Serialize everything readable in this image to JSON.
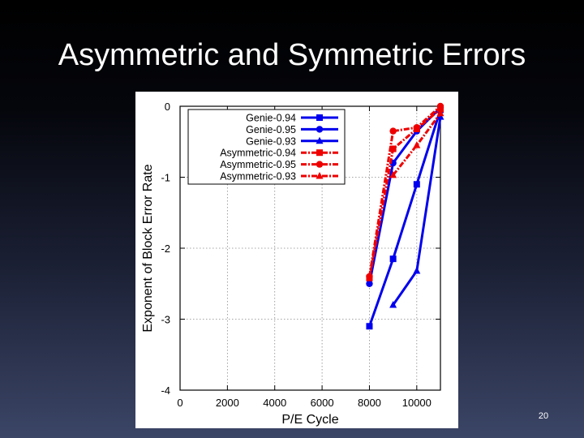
{
  "slide": {
    "title": "Asymmetric and Symmetric Errors",
    "page_number": "20"
  },
  "chart_data": {
    "type": "line",
    "xlabel": "P/E Cycle",
    "ylabel": "Exponent of Block Error Rate",
    "xlim": [
      0,
      11000
    ],
    "ylim": [
      -4,
      0
    ],
    "xticks": [
      0,
      2000,
      4000,
      6000,
      8000,
      10000
    ],
    "yticks": [
      0,
      -1,
      -2,
      -3,
      -4
    ],
    "grid": true,
    "legend_position": "top-left",
    "series": [
      {
        "name": "Genie-0.94",
        "color": "#0000ee",
        "dash": false,
        "marker": "square",
        "points": [
          [
            8000,
            -3.1
          ],
          [
            9000,
            -2.15
          ],
          [
            10000,
            -1.1
          ],
          [
            11000,
            -0.05
          ]
        ]
      },
      {
        "name": "Genie-0.95",
        "color": "#0000ee",
        "dash": false,
        "marker": "circle",
        "points": [
          [
            8000,
            -2.5
          ],
          [
            9000,
            -0.8
          ],
          [
            10000,
            -0.35
          ],
          [
            11000,
            -0.02
          ]
        ]
      },
      {
        "name": "Genie-0.93",
        "color": "#0000ee",
        "dash": false,
        "marker": "triangle",
        "points": [
          [
            9000,
            -2.8
          ],
          [
            10000,
            -2.32
          ],
          [
            11000,
            -0.15
          ]
        ]
      },
      {
        "name": "Asymmetric-0.94",
        "color": "#ee0000",
        "dash": true,
        "marker": "square",
        "points": [
          [
            8000,
            -2.42
          ],
          [
            9000,
            -0.6
          ],
          [
            10000,
            -0.32
          ],
          [
            11000,
            -0.04
          ]
        ]
      },
      {
        "name": "Asymmetric-0.95",
        "color": "#ee0000",
        "dash": true,
        "marker": "circle",
        "points": [
          [
            8000,
            -2.4
          ],
          [
            9000,
            -0.35
          ],
          [
            10000,
            -0.3
          ],
          [
            11000,
            0.0
          ]
        ]
      },
      {
        "name": "Asymmetric-0.93",
        "color": "#ee0000",
        "dash": true,
        "marker": "triangle",
        "points": [
          [
            9000,
            -0.97
          ],
          [
            10000,
            -0.55
          ],
          [
            11000,
            -0.1
          ]
        ]
      }
    ]
  }
}
